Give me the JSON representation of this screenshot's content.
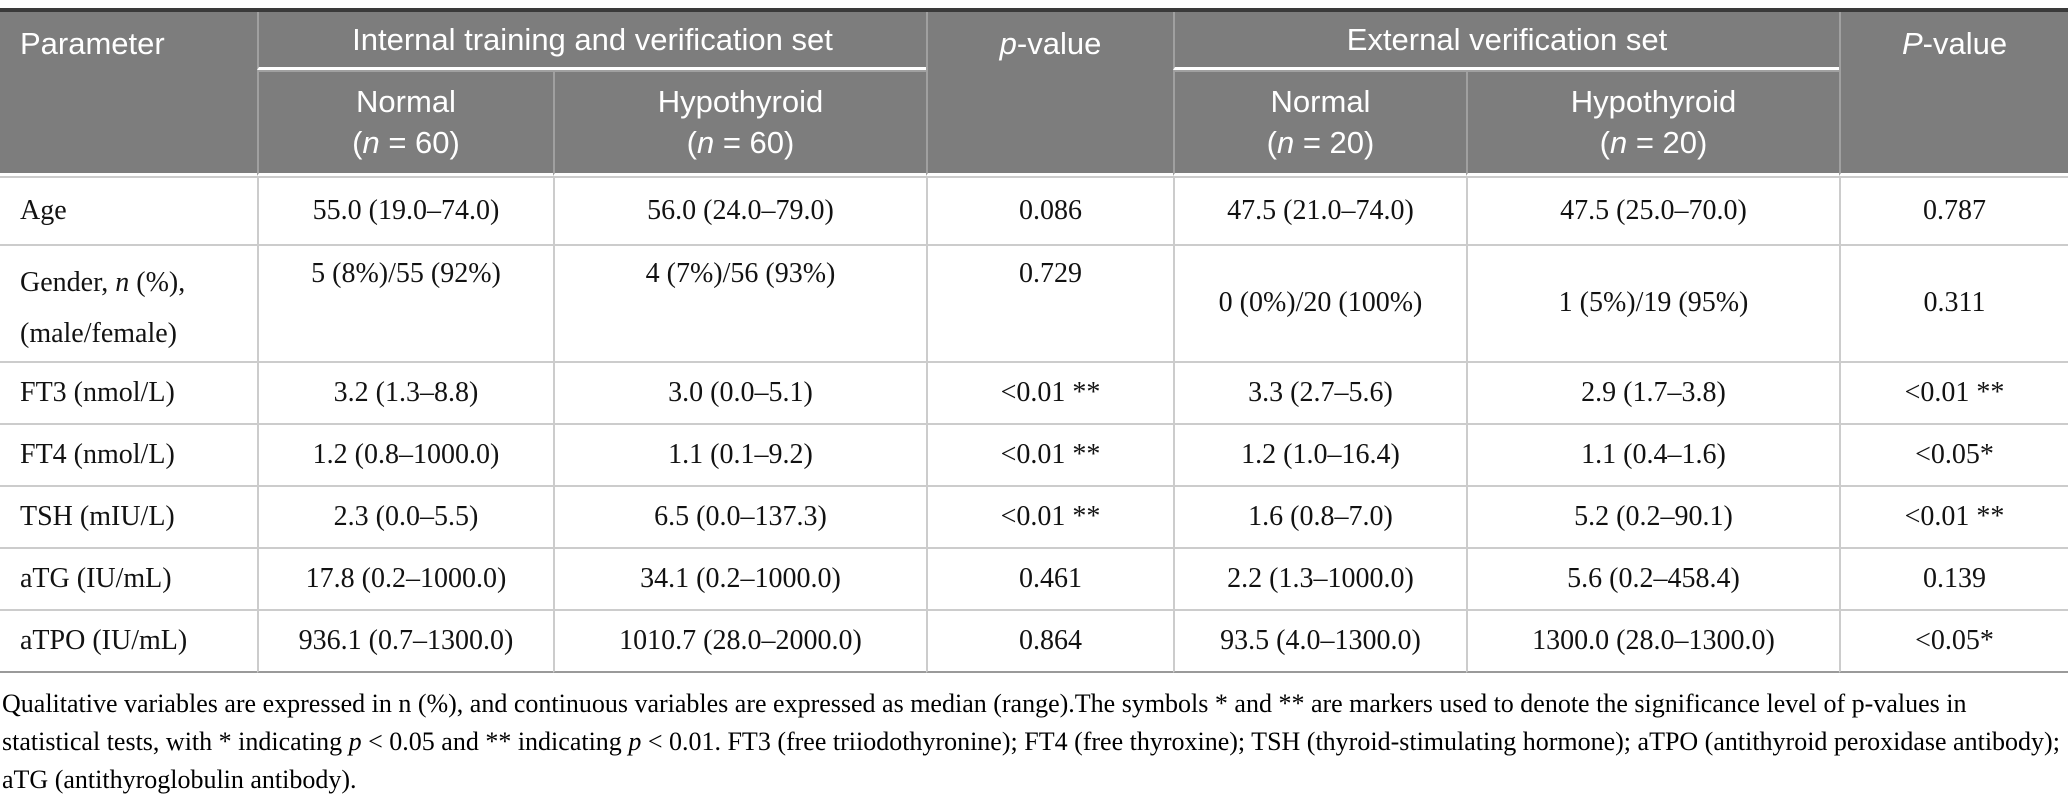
{
  "colors": {
    "header_bg": "#7d7d7d",
    "header_text": "#ffffff",
    "header_line": "#a0a0a0",
    "body_line": "#cccccc",
    "top_border": "#3a3a3a",
    "bottom_border": "#9a9a9a",
    "body_text": "#121212"
  },
  "header": {
    "parameter": "Parameter",
    "group_internal": "Internal training and verification set",
    "p_value_internal": [
      {
        "t": "p",
        "i": true
      },
      {
        "t": "-value"
      }
    ],
    "group_external": "External verification set",
    "p_value_external": [
      {
        "t": "P",
        "i": true
      },
      {
        "t": "-value"
      }
    ],
    "subheaders": [
      {
        "line1": "Normal",
        "line2": [
          {
            "t": "("
          },
          {
            "t": "n",
            "i": true
          },
          {
            "t": " = 60)"
          }
        ]
      },
      {
        "line1": "Hypothyroid",
        "line2": [
          {
            "t": "("
          },
          {
            "t": "n",
            "i": true
          },
          {
            "t": " = 60)"
          }
        ]
      },
      {
        "line1": "Normal",
        "line2": [
          {
            "t": "("
          },
          {
            "t": "n",
            "i": true
          },
          {
            "t": " = 20)"
          }
        ]
      },
      {
        "line1": "Hypothyroid",
        "line2": [
          {
            "t": "("
          },
          {
            "t": "n",
            "i": true
          },
          {
            "t": " = 20)"
          }
        ]
      }
    ]
  },
  "rows": [
    {
      "key": "age",
      "param": [
        {
          "t": "Age"
        }
      ],
      "cells": [
        "55.0 (19.0–74.0)",
        "56.0 (24.0–79.0)",
        "0.086",
        "47.5 (21.0–74.0)",
        "47.5 (25.0–70.0)",
        "0.787"
      ]
    },
    {
      "key": "gender",
      "param": [
        {
          "t": "Gender, "
        },
        {
          "t": "n",
          "i": true
        },
        {
          "t": " (%),"
        },
        {
          "br": true
        },
        {
          "t": "(male/female)"
        }
      ],
      "cells": [
        "5 (8%)/55 (92%)",
        "4 (7%)/56 (93%)",
        "0.729",
        "0 (0%)/20 (100%)",
        "1 (5%)/19 (95%)",
        "0.311"
      ]
    },
    {
      "key": "ft3",
      "param": [
        {
          "t": "FT3 (nmol/L)"
        }
      ],
      "cells": [
        "3.2 (1.3–8.8)",
        "3.0 (0.0–5.1)",
        "<0.01 **",
        "3.3 (2.7–5.6)",
        "2.9 (1.7–3.8)",
        "<0.01 **"
      ]
    },
    {
      "key": "ft4",
      "param": [
        {
          "t": "FT4 (nmol/L)"
        }
      ],
      "cells": [
        "1.2 (0.8–1000.0)",
        "1.1 (0.1–9.2)",
        "<0.01 **",
        "1.2 (1.0–16.4)",
        "1.1 (0.4–1.6)",
        "<0.05*"
      ]
    },
    {
      "key": "tsh",
      "param": [
        {
          "t": "TSH (mIU/L)"
        }
      ],
      "cells": [
        "2.3 (0.0–5.5)",
        "6.5 (0.0–137.3)",
        "<0.01 **",
        "1.6 (0.8–7.0)",
        "5.2 (0.2–90.1)",
        "<0.01 **"
      ]
    },
    {
      "key": "atg",
      "param": [
        {
          "t": "aTG (IU/mL)"
        }
      ],
      "cells": [
        "17.8 (0.2–1000.0)",
        "34.1 (0.2–1000.0)",
        "0.461",
        "2.2 (1.3–1000.0)",
        "5.6 (0.2–458.4)",
        "0.139"
      ]
    },
    {
      "key": "atpo",
      "param": [
        {
          "t": "aTPO (IU/mL)"
        }
      ],
      "cells": [
        "936.1 (0.7–1300.0)",
        "1010.7 (28.0–2000.0)",
        "0.864",
        "93.5 (4.0–1300.0)",
        "1300.0 (28.0–1300.0)",
        "<0.05*"
      ]
    }
  ],
  "cell_column_names": [
    "internal-normal",
    "internal-hypothyroid",
    "p-value-internal",
    "external-normal",
    "external-hypothyroid",
    "p-value-external"
  ],
  "footnote": [
    {
      "t": "Qualitative variables are expressed in n (%), and continuous variables are expressed as median (range).The symbols * and ** are markers used to denote the significance level of p-values in statistical tests, with * indicating "
    },
    {
      "t": "p",
      "i": true
    },
    {
      "t": " < 0.05 and ** indicating "
    },
    {
      "t": "p",
      "i": true
    },
    {
      "t": " < 0.01. FT3 (free triiodothyronine); FT4 (free thyroxine); TSH (thyroid-stimulating hormone); aTPO (antithyroid peroxidase antibody); aTG (antithyroglobulin antibody)."
    }
  ]
}
